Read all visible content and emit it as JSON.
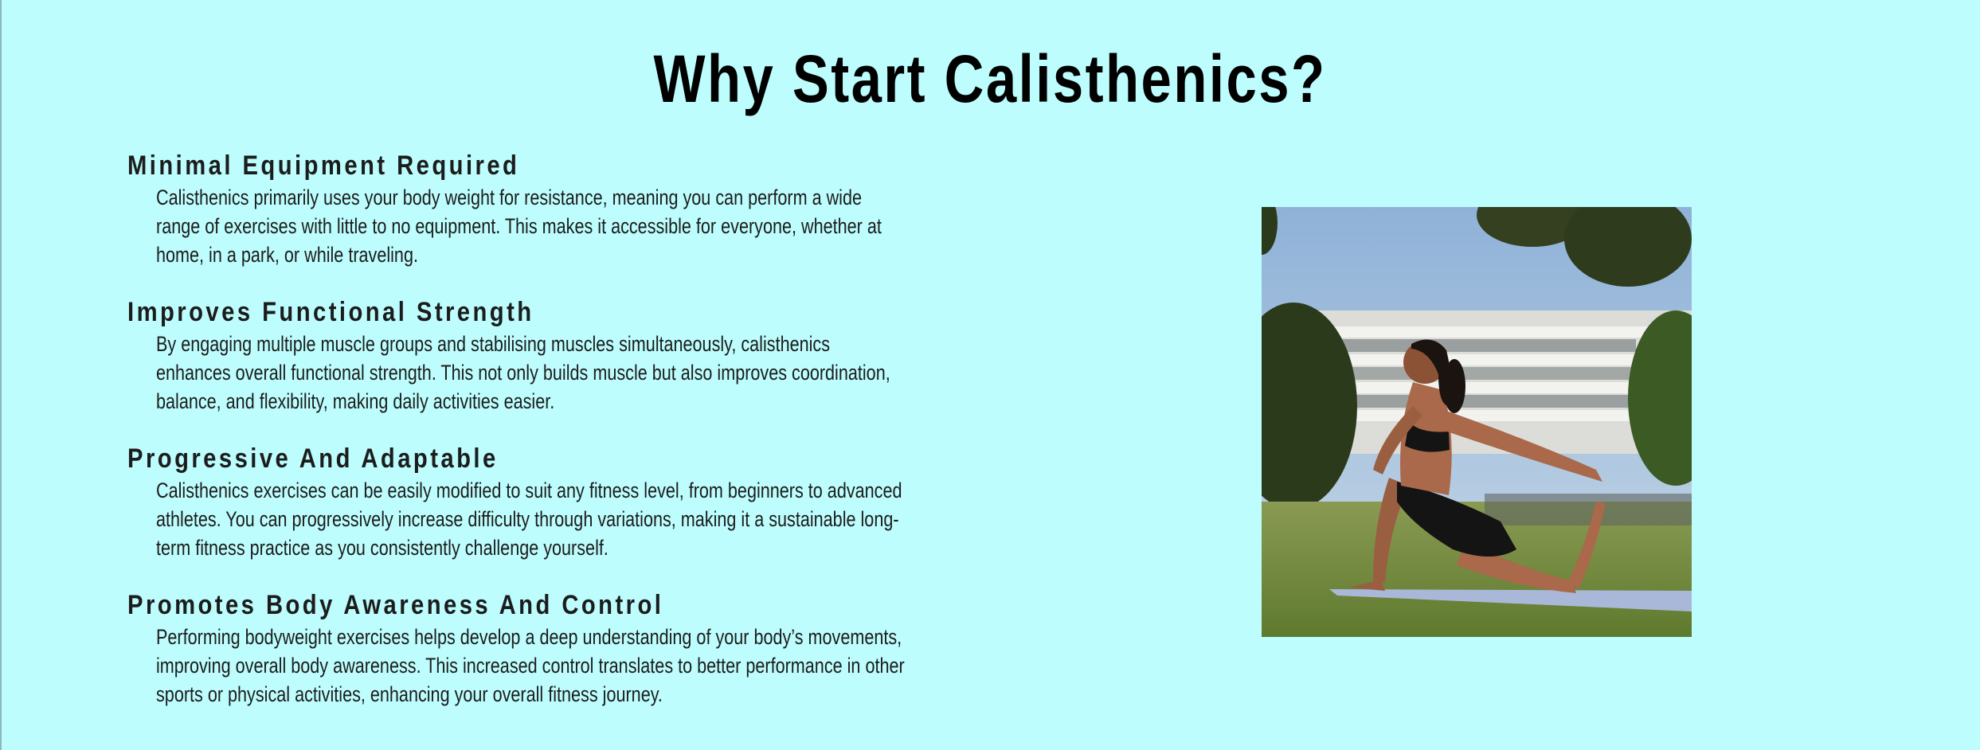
{
  "page": {
    "title": "Why Start Calisthenics?"
  },
  "benefits": [
    {
      "heading": "Minimal Equipment Required",
      "body": "Calisthenics primarily uses your body weight for resistance, meaning you can perform a wide range of exercises with little to no equipment. This makes it accessible for everyone, whether at home, in a park, or while traveling."
    },
    {
      "heading": "Improves Functional Strength",
      "body": "By engaging multiple muscle groups and stabilising muscles simultaneously, calisthenics enhances overall functional strength. This not only builds muscle but also improves coordination, balance, and flexibility, making daily activities easier."
    },
    {
      "heading": "Progressive And Adaptable",
      "body": "Calisthenics exercises can be easily modified to suit any fitness level, from beginners to advanced athletes. You can progressively increase difficulty through variations, making it a sustainable long-term fitness practice as you consistently challenge yourself."
    },
    {
      "heading": "Promotes Body Awareness And Control",
      "body": "Performing bodyweight exercises helps develop a deep understanding of your body’s movements, improving overall body awareness. This increased control translates to better performance in other sports or physical activities, enhancing your overall fitness journey."
    }
  ],
  "image": {
    "icon": "photo-woman-stretching-in-park"
  },
  "colors": {
    "background": "#bdfdfd",
    "title": "#000000",
    "text": "#1c1c1c"
  }
}
